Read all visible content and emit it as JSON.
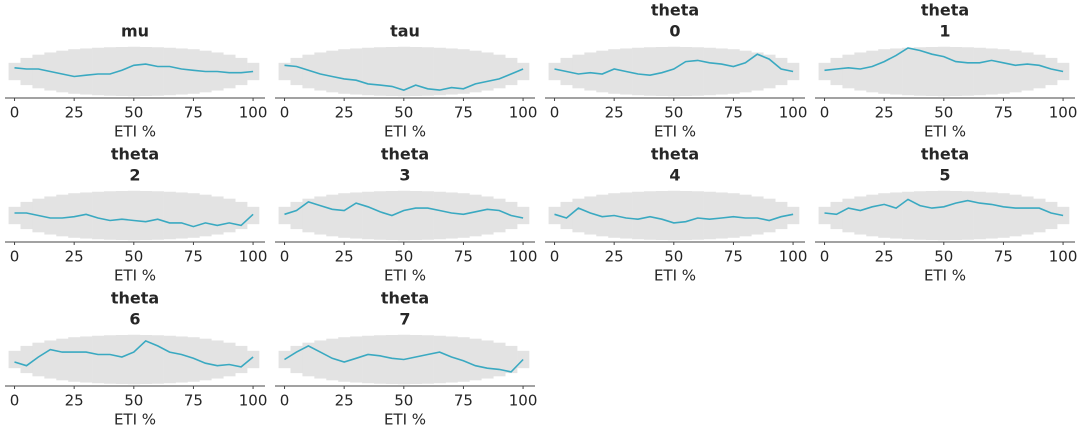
{
  "chart_data": [
    {
      "type": "line",
      "title_lines": [
        "mu"
      ],
      "xlabel": "ETI %",
      "xlim": [
        -4,
        105
      ],
      "ylim": [
        -1.05,
        1.05
      ],
      "xticks": [
        0,
        25,
        50,
        75,
        100
      ],
      "color": "#3aa9c1",
      "band_color": "#e3e3e3",
      "x": [
        0,
        5,
        10,
        15,
        20,
        25,
        30,
        35,
        40,
        45,
        50,
        55,
        60,
        65,
        70,
        75,
        80,
        85,
        90,
        95,
        100
      ],
      "values": [
        0.15,
        0.1,
        0.1,
        0.0,
        -0.1,
        -0.2,
        -0.15,
        -0.1,
        -0.1,
        0.05,
        0.25,
        0.3,
        0.2,
        0.2,
        0.1,
        0.05,
        0.0,
        0.0,
        -0.05,
        -0.05,
        0.0
      ],
      "band_upper": [
        0.35,
        0.55,
        0.68,
        0.77,
        0.84,
        0.9,
        0.93,
        0.96,
        0.98,
        0.99,
        1.0,
        0.99,
        0.98,
        0.96,
        0.93,
        0.9,
        0.84,
        0.77,
        0.68,
        0.55,
        0.35
      ],
      "band_lower": [
        -0.35,
        -0.55,
        -0.68,
        -0.77,
        -0.84,
        -0.9,
        -0.93,
        -0.96,
        -0.98,
        -0.99,
        -1.0,
        -0.99,
        -0.98,
        -0.96,
        -0.93,
        -0.9,
        -0.84,
        -0.77,
        -0.68,
        -0.55,
        -0.35
      ]
    },
    {
      "type": "line",
      "title_lines": [
        "tau"
      ],
      "xlabel": "ETI %",
      "xlim": [
        -4,
        105
      ],
      "ylim": [
        -1.05,
        1.05
      ],
      "xticks": [
        0,
        25,
        50,
        75,
        100
      ],
      "color": "#3aa9c1",
      "band_color": "#e3e3e3",
      "x": [
        0,
        5,
        10,
        15,
        20,
        25,
        30,
        35,
        40,
        45,
        50,
        55,
        60,
        65,
        70,
        75,
        80,
        85,
        90,
        95,
        100
      ],
      "values": [
        0.25,
        0.2,
        0.05,
        -0.1,
        -0.2,
        -0.3,
        -0.35,
        -0.5,
        -0.55,
        -0.6,
        -0.75,
        -0.55,
        -0.7,
        -0.75,
        -0.65,
        -0.7,
        -0.5,
        -0.4,
        -0.3,
        -0.1,
        0.1
      ],
      "band_upper": [
        0.35,
        0.55,
        0.68,
        0.77,
        0.84,
        0.9,
        0.93,
        0.96,
        0.98,
        0.99,
        1.0,
        0.99,
        0.98,
        0.96,
        0.93,
        0.9,
        0.84,
        0.77,
        0.68,
        0.55,
        0.35
      ],
      "band_lower": [
        -0.35,
        -0.55,
        -0.68,
        -0.77,
        -0.84,
        -0.9,
        -0.93,
        -0.96,
        -0.98,
        -0.99,
        -1.0,
        -0.99,
        -0.98,
        -0.96,
        -0.93,
        -0.9,
        -0.84,
        -0.77,
        -0.68,
        -0.55,
        -0.35
      ]
    },
    {
      "type": "line",
      "title_lines": [
        "theta",
        "0"
      ],
      "xlabel": "ETI %",
      "xlim": [
        -4,
        105
      ],
      "ylim": [
        -1.05,
        1.05
      ],
      "xticks": [
        0,
        25,
        50,
        75,
        100
      ],
      "color": "#3aa9c1",
      "band_color": "#e3e3e3",
      "x": [
        0,
        5,
        10,
        15,
        20,
        25,
        30,
        35,
        40,
        45,
        50,
        55,
        60,
        65,
        70,
        75,
        80,
        85,
        90,
        95,
        100
      ],
      "values": [
        0.1,
        0.0,
        -0.1,
        -0.05,
        -0.1,
        0.1,
        0.0,
        -0.1,
        -0.15,
        -0.05,
        0.1,
        0.4,
        0.45,
        0.35,
        0.3,
        0.2,
        0.35,
        0.7,
        0.5,
        0.1,
        0.0
      ],
      "band_upper": [
        0.35,
        0.55,
        0.68,
        0.77,
        0.84,
        0.9,
        0.93,
        0.96,
        0.98,
        0.99,
        1.0,
        0.99,
        0.98,
        0.96,
        0.93,
        0.9,
        0.84,
        0.77,
        0.68,
        0.55,
        0.35
      ],
      "band_lower": [
        -0.35,
        -0.55,
        -0.68,
        -0.77,
        -0.84,
        -0.9,
        -0.93,
        -0.96,
        -0.98,
        -0.99,
        -1.0,
        -0.99,
        -0.98,
        -0.96,
        -0.93,
        -0.9,
        -0.84,
        -0.77,
        -0.68,
        -0.55,
        -0.35
      ]
    },
    {
      "type": "line",
      "title_lines": [
        "theta",
        "1"
      ],
      "xlabel": "ETI %",
      "xlim": [
        -4,
        105
      ],
      "ylim": [
        -1.05,
        1.05
      ],
      "xticks": [
        0,
        25,
        50,
        75,
        100
      ],
      "color": "#3aa9c1",
      "band_color": "#e3e3e3",
      "x": [
        0,
        5,
        10,
        15,
        20,
        25,
        30,
        35,
        40,
        45,
        50,
        55,
        60,
        65,
        70,
        75,
        80,
        85,
        90,
        95,
        100
      ],
      "values": [
        0.05,
        0.1,
        0.15,
        0.1,
        0.2,
        0.4,
        0.65,
        0.95,
        0.85,
        0.7,
        0.6,
        0.4,
        0.35,
        0.35,
        0.45,
        0.35,
        0.25,
        0.3,
        0.25,
        0.1,
        0.0
      ],
      "band_upper": [
        0.35,
        0.55,
        0.68,
        0.77,
        0.84,
        0.9,
        0.93,
        0.96,
        0.98,
        0.99,
        1.0,
        0.99,
        0.98,
        0.96,
        0.93,
        0.9,
        0.84,
        0.77,
        0.68,
        0.55,
        0.35
      ],
      "band_lower": [
        -0.35,
        -0.55,
        -0.68,
        -0.77,
        -0.84,
        -0.9,
        -0.93,
        -0.96,
        -0.98,
        -0.99,
        -1.0,
        -0.99,
        -0.98,
        -0.96,
        -0.93,
        -0.9,
        -0.84,
        -0.77,
        -0.68,
        -0.55,
        -0.35
      ]
    },
    {
      "type": "line",
      "title_lines": [
        "theta",
        "2"
      ],
      "xlabel": "ETI %",
      "xlim": [
        -4,
        105
      ],
      "ylim": [
        -1.05,
        1.05
      ],
      "xticks": [
        0,
        25,
        50,
        75,
        100
      ],
      "color": "#3aa9c1",
      "band_color": "#e3e3e3",
      "x": [
        0,
        5,
        10,
        15,
        20,
        25,
        30,
        35,
        40,
        45,
        50,
        55,
        60,
        65,
        70,
        75,
        80,
        85,
        90,
        95,
        100
      ],
      "values": [
        0.1,
        0.1,
        0.0,
        -0.1,
        -0.1,
        -0.05,
        0.05,
        -0.1,
        -0.2,
        -0.15,
        -0.2,
        -0.25,
        -0.15,
        -0.3,
        -0.3,
        -0.45,
        -0.3,
        -0.4,
        -0.3,
        -0.4,
        0.05
      ],
      "band_upper": [
        0.35,
        0.55,
        0.68,
        0.77,
        0.84,
        0.9,
        0.93,
        0.96,
        0.98,
        0.99,
        1.0,
        0.99,
        0.98,
        0.96,
        0.93,
        0.9,
        0.84,
        0.77,
        0.68,
        0.55,
        0.35
      ],
      "band_lower": [
        -0.35,
        -0.55,
        -0.68,
        -0.77,
        -0.84,
        -0.9,
        -0.93,
        -0.96,
        -0.98,
        -0.99,
        -1.0,
        -0.99,
        -0.98,
        -0.96,
        -0.93,
        -0.9,
        -0.84,
        -0.77,
        -0.68,
        -0.55,
        -0.35
      ]
    },
    {
      "type": "line",
      "title_lines": [
        "theta",
        "3"
      ],
      "xlabel": "ETI %",
      "xlim": [
        -4,
        105
      ],
      "ylim": [
        -1.05,
        1.05
      ],
      "xticks": [
        0,
        25,
        50,
        75,
        100
      ],
      "color": "#3aa9c1",
      "band_color": "#e3e3e3",
      "x": [
        0,
        5,
        10,
        15,
        20,
        25,
        30,
        35,
        40,
        45,
        50,
        55,
        60,
        65,
        70,
        75,
        80,
        85,
        90,
        95,
        100
      ],
      "values": [
        0.05,
        0.2,
        0.55,
        0.4,
        0.25,
        0.2,
        0.5,
        0.35,
        0.15,
        0.0,
        0.2,
        0.3,
        0.3,
        0.2,
        0.1,
        0.05,
        0.15,
        0.25,
        0.2,
        0.0,
        -0.1
      ],
      "band_upper": [
        0.35,
        0.55,
        0.68,
        0.77,
        0.84,
        0.9,
        0.93,
        0.96,
        0.98,
        0.99,
        1.0,
        0.99,
        0.98,
        0.96,
        0.93,
        0.9,
        0.84,
        0.77,
        0.68,
        0.55,
        0.35
      ],
      "band_lower": [
        -0.35,
        -0.55,
        -0.68,
        -0.77,
        -0.84,
        -0.9,
        -0.93,
        -0.96,
        -0.98,
        -0.99,
        -1.0,
        -0.99,
        -0.98,
        -0.96,
        -0.93,
        -0.9,
        -0.84,
        -0.77,
        -0.68,
        -0.55,
        -0.35
      ]
    },
    {
      "type": "line",
      "title_lines": [
        "theta",
        "4"
      ],
      "xlabel": "ETI %",
      "xlim": [
        -4,
        105
      ],
      "ylim": [
        -1.05,
        1.05
      ],
      "xticks": [
        0,
        25,
        50,
        75,
        100
      ],
      "color": "#3aa9c1",
      "band_color": "#e3e3e3",
      "x": [
        0,
        5,
        10,
        15,
        20,
        25,
        30,
        35,
        40,
        45,
        50,
        55,
        60,
        65,
        70,
        75,
        80,
        85,
        90,
        95,
        100
      ],
      "values": [
        0.05,
        -0.1,
        0.3,
        0.1,
        -0.05,
        0.0,
        -0.1,
        -0.15,
        -0.05,
        -0.15,
        -0.3,
        -0.25,
        -0.1,
        -0.15,
        -0.1,
        -0.05,
        -0.1,
        -0.1,
        -0.2,
        -0.05,
        0.05
      ],
      "band_upper": [
        0.35,
        0.55,
        0.68,
        0.77,
        0.84,
        0.9,
        0.93,
        0.96,
        0.98,
        0.99,
        1.0,
        0.99,
        0.98,
        0.96,
        0.93,
        0.9,
        0.84,
        0.77,
        0.68,
        0.55,
        0.35
      ],
      "band_lower": [
        -0.35,
        -0.55,
        -0.68,
        -0.77,
        -0.84,
        -0.9,
        -0.93,
        -0.96,
        -0.98,
        -0.99,
        -1.0,
        -0.99,
        -0.98,
        -0.96,
        -0.93,
        -0.9,
        -0.84,
        -0.77,
        -0.68,
        -0.55,
        -0.35
      ]
    },
    {
      "type": "line",
      "title_lines": [
        "theta",
        "5"
      ],
      "xlabel": "ETI %",
      "xlim": [
        -4,
        105
      ],
      "ylim": [
        -1.05,
        1.05
      ],
      "xticks": [
        0,
        25,
        50,
        75,
        100
      ],
      "color": "#3aa9c1",
      "band_color": "#e3e3e3",
      "x": [
        0,
        5,
        10,
        15,
        20,
        25,
        30,
        35,
        40,
        45,
        50,
        55,
        60,
        65,
        70,
        75,
        80,
        85,
        90,
        95,
        100
      ],
      "values": [
        0.1,
        0.05,
        0.3,
        0.2,
        0.35,
        0.45,
        0.3,
        0.65,
        0.4,
        0.3,
        0.35,
        0.5,
        0.6,
        0.5,
        0.45,
        0.35,
        0.3,
        0.3,
        0.3,
        0.1,
        0.0
      ],
      "band_upper": [
        0.35,
        0.55,
        0.68,
        0.77,
        0.84,
        0.9,
        0.93,
        0.96,
        0.98,
        0.99,
        1.0,
        0.99,
        0.98,
        0.96,
        0.93,
        0.9,
        0.84,
        0.77,
        0.68,
        0.55,
        0.35
      ],
      "band_lower": [
        -0.35,
        -0.55,
        -0.68,
        -0.77,
        -0.84,
        -0.9,
        -0.93,
        -0.96,
        -0.98,
        -0.99,
        -1.0,
        -0.99,
        -0.98,
        -0.96,
        -0.93,
        -0.9,
        -0.84,
        -0.77,
        -0.68,
        -0.55,
        -0.35
      ]
    },
    {
      "type": "line",
      "title_lines": [
        "theta",
        "6"
      ],
      "xlabel": "ETI %",
      "xlim": [
        -4,
        105
      ],
      "ylim": [
        -1.05,
        1.05
      ],
      "xticks": [
        0,
        25,
        50,
        75,
        100
      ],
      "color": "#3aa9c1",
      "band_color": "#e3e3e3",
      "x": [
        0,
        5,
        10,
        15,
        20,
        25,
        30,
        35,
        40,
        45,
        50,
        55,
        60,
        65,
        70,
        75,
        80,
        85,
        90,
        95,
        100
      ],
      "values": [
        -0.1,
        -0.25,
        0.1,
        0.4,
        0.3,
        0.3,
        0.3,
        0.2,
        0.2,
        0.1,
        0.3,
        0.75,
        0.55,
        0.3,
        0.2,
        0.05,
        -0.15,
        -0.25,
        -0.2,
        -0.3,
        0.1
      ],
      "band_upper": [
        0.35,
        0.55,
        0.68,
        0.77,
        0.84,
        0.9,
        0.93,
        0.96,
        0.98,
        0.99,
        1.0,
        0.99,
        0.98,
        0.96,
        0.93,
        0.9,
        0.84,
        0.77,
        0.68,
        0.55,
        0.35
      ],
      "band_lower": [
        -0.35,
        -0.55,
        -0.68,
        -0.77,
        -0.84,
        -0.9,
        -0.93,
        -0.96,
        -0.98,
        -0.99,
        -1.0,
        -0.99,
        -0.98,
        -0.96,
        -0.93,
        -0.9,
        -0.84,
        -0.77,
        -0.68,
        -0.55,
        -0.35
      ]
    },
    {
      "type": "line",
      "title_lines": [
        "theta",
        "7"
      ],
      "xlabel": "ETI %",
      "xlim": [
        -4,
        105
      ],
      "ylim": [
        -1.05,
        1.05
      ],
      "xticks": [
        0,
        25,
        50,
        75,
        100
      ],
      "color": "#3aa9c1",
      "band_color": "#e3e3e3",
      "x": [
        0,
        5,
        10,
        15,
        20,
        25,
        30,
        35,
        40,
        45,
        50,
        55,
        60,
        65,
        70,
        75,
        80,
        85,
        90,
        95,
        100
      ],
      "values": [
        0.0,
        0.3,
        0.55,
        0.3,
        0.05,
        -0.1,
        0.05,
        0.2,
        0.15,
        0.05,
        0.0,
        0.1,
        0.2,
        0.3,
        0.1,
        -0.05,
        -0.25,
        -0.35,
        -0.4,
        -0.5,
        0.0
      ],
      "band_upper": [
        0.35,
        0.55,
        0.68,
        0.77,
        0.84,
        0.9,
        0.93,
        0.96,
        0.98,
        0.99,
        1.0,
        0.99,
        0.98,
        0.96,
        0.93,
        0.9,
        0.84,
        0.77,
        0.68,
        0.55,
        0.35
      ],
      "band_lower": [
        -0.35,
        -0.55,
        -0.68,
        -0.77,
        -0.84,
        -0.9,
        -0.93,
        -0.96,
        -0.98,
        -0.99,
        -1.0,
        -0.99,
        -0.98,
        -0.96,
        -0.93,
        -0.9,
        -0.84,
        -0.77,
        -0.68,
        -0.55,
        -0.35
      ]
    }
  ]
}
